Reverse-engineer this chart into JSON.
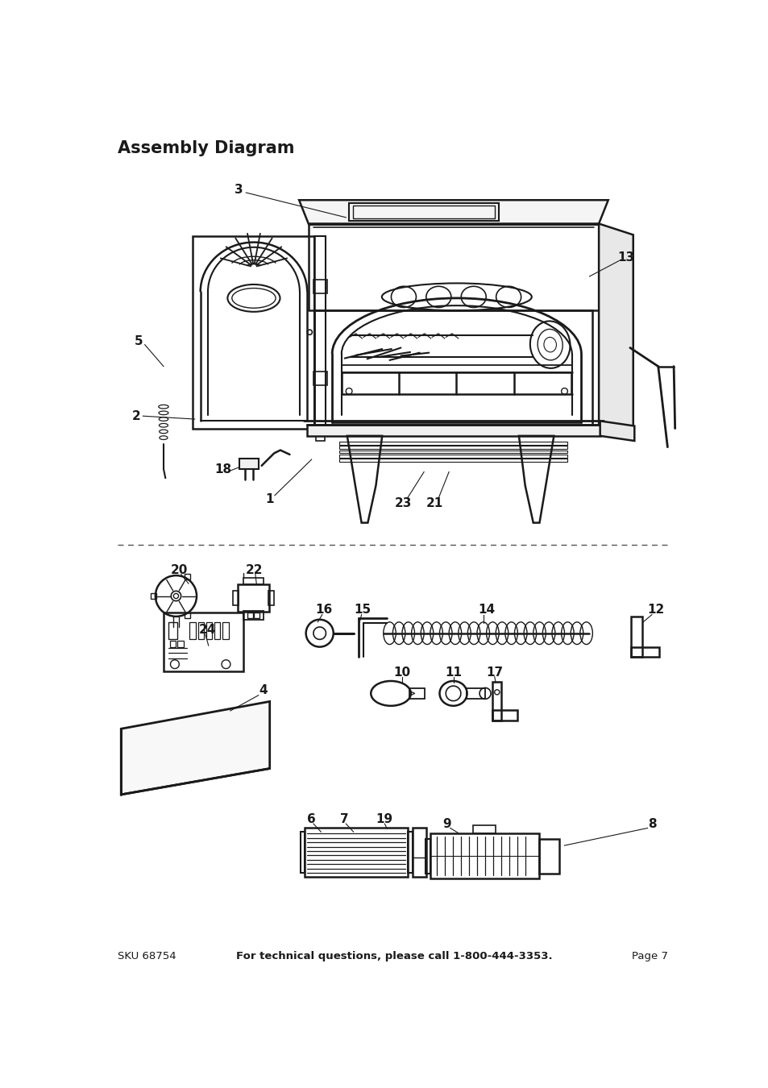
{
  "title": "Assembly Diagram",
  "bg": "#ffffff",
  "lc": "#1a1a1a",
  "footer_left": "SKU 68754",
  "footer_center": "For technical questions, please call 1-800-444-3353.",
  "footer_right": "Page 7"
}
